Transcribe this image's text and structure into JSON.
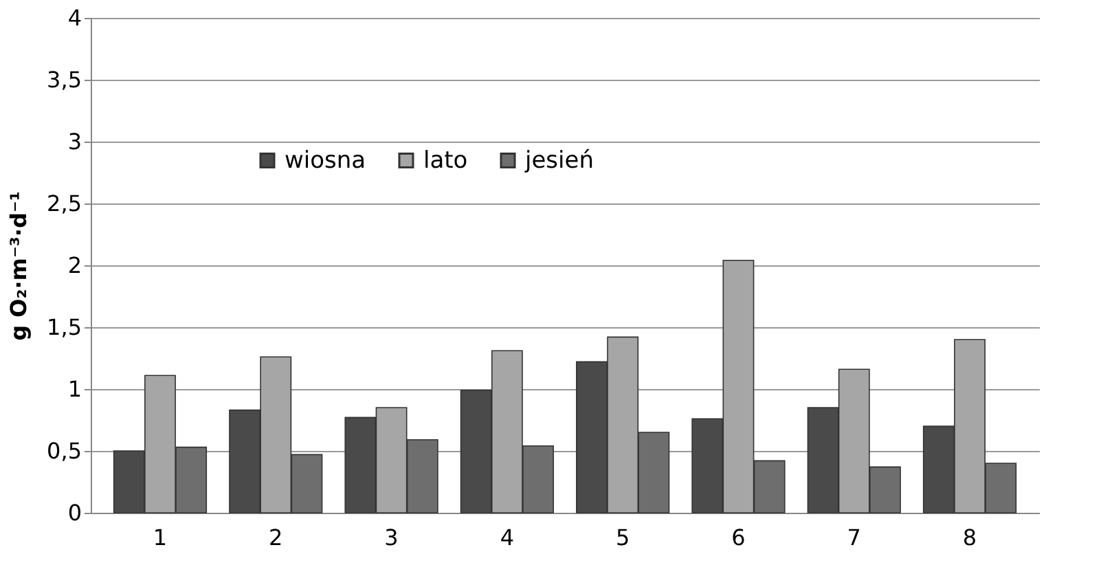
{
  "chart_data": {
    "type": "bar",
    "ylabel": "g O₂·m⁻³·d⁻¹",
    "categories": [
      "1",
      "2",
      "3",
      "4",
      "5",
      "6",
      "7",
      "8"
    ],
    "series": [
      {
        "name": "wiosna",
        "color": "#4a4a4a",
        "values": [
          0.5,
          0.83,
          0.77,
          0.99,
          1.22,
          0.76,
          0.85,
          0.7
        ]
      },
      {
        "name": "lato",
        "color": "#a6a6a6",
        "values": [
          1.11,
          1.26,
          0.85,
          1.31,
          1.42,
          2.04,
          1.16,
          1.4
        ]
      },
      {
        "name": "jesień",
        "color": "#6e6e6e",
        "values": [
          0.53,
          0.47,
          0.59,
          0.54,
          0.65,
          0.42,
          0.37,
          0.4
        ]
      }
    ],
    "ylim": [
      0,
      4
    ],
    "yticks": [
      0,
      {
        "value": 0.5,
        "label": "0,5"
      },
      1,
      {
        "value": 1.5,
        "label": "1,5"
      },
      2,
      {
        "value": 2.5,
        "label": "2,5"
      },
      3,
      {
        "value": 3.5,
        "label": "3,5"
      },
      4
    ],
    "grid": "y",
    "legend": "top left"
  }
}
